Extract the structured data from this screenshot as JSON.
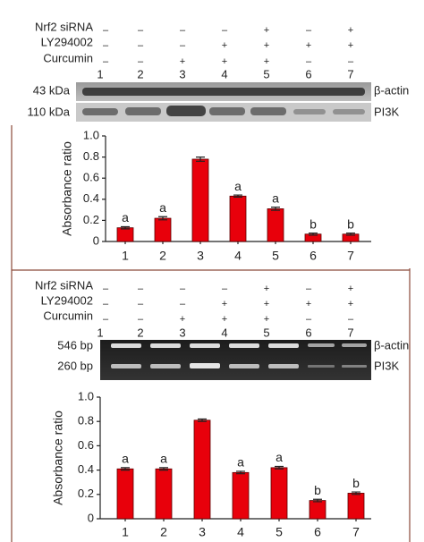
{
  "panels": [
    {
      "treatments": [
        {
          "name": "Nrf2 siRNA",
          "signs": [
            "–",
            "–",
            "–",
            "–",
            "+",
            "–",
            "+"
          ]
        },
        {
          "name": "LY294002",
          "signs": [
            "–",
            "–",
            "–",
            "+",
            "+",
            "+",
            "+"
          ]
        },
        {
          "name": "Curcumin",
          "signs": [
            "–",
            "–",
            "+",
            "+",
            "+",
            "–",
            "–"
          ]
        }
      ],
      "lanes": [
        "1",
        "2",
        "3",
        "4",
        "5",
        "6",
        "7"
      ],
      "blot": [
        {
          "size": "43 kDa",
          "protein": "β-actin"
        },
        {
          "size": "110 kDa",
          "protein": "PI3K"
        }
      ]
    },
    {
      "treatments": [
        {
          "name": "Nrf2 siRNA",
          "signs": [
            "–",
            "–",
            "–",
            "–",
            "+",
            "–",
            "+"
          ]
        },
        {
          "name": "LY294002",
          "signs": [
            "–",
            "–",
            "–",
            "+",
            "+",
            "+",
            "+"
          ]
        },
        {
          "name": "Curcumin",
          "signs": [
            "–",
            "–",
            "+",
            "+",
            "+",
            "–",
            "–"
          ]
        }
      ],
      "lanes": [
        "1",
        "2",
        "3",
        "4",
        "5",
        "6",
        "7"
      ],
      "blot": [
        {
          "size": "546 bp",
          "protein": "β-actin"
        },
        {
          "size": "260 bp",
          "protein": "PI3K"
        }
      ]
    }
  ],
  "chart_data": [
    {
      "type": "bar",
      "y_label": "Absorbance ratio",
      "categories": [
        "1",
        "2",
        "3",
        "4",
        "5",
        "6",
        "7"
      ],
      "values": [
        0.13,
        0.22,
        0.78,
        0.43,
        0.31,
        0.07,
        0.07
      ],
      "errors": [
        0.01,
        0.015,
        0.02,
        0.01,
        0.015,
        0.01,
        0.01
      ],
      "annotations": [
        "a",
        "a",
        null,
        "a",
        "a",
        "b",
        "b"
      ],
      "color": "#e8000b",
      "ylim": [
        0,
        1
      ],
      "yticks": [
        0,
        0.2,
        0.4,
        0.6,
        0.8,
        {
          "value": 1,
          "label": "1.0"
        }
      ]
    },
    {
      "type": "bar",
      "y_label": "Absorbance ratio",
      "categories": [
        "1",
        "2",
        "3",
        "4",
        "5",
        "6",
        "7"
      ],
      "values": [
        0.41,
        0.41,
        0.81,
        0.38,
        0.42,
        0.15,
        0.21
      ],
      "errors": [
        0.01,
        0.01,
        0.01,
        0.01,
        0.01,
        0.01,
        0.01
      ],
      "annotations": [
        "a",
        "a",
        null,
        "a",
        "a",
        "b",
        "b"
      ],
      "color": "#e8000b",
      "ylim": [
        0,
        1
      ],
      "yticks": [
        0,
        0.2,
        0.4,
        0.6,
        0.8,
        {
          "value": 1,
          "label": "1.0"
        }
      ]
    }
  ]
}
